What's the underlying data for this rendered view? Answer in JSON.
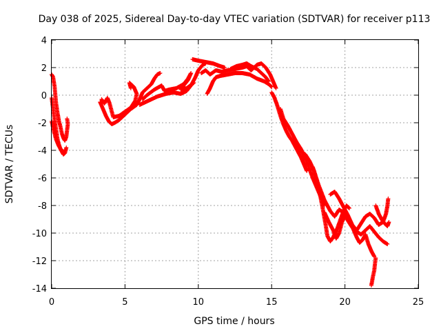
{
  "chart_data": {
    "type": "scatter",
    "title": "Day 038 of 2025, Sidereal Day-to-day VTEC variation (SDTVAR) for receiver p113",
    "xlabel": "GPS time / hours",
    "ylabel": "SDTVAR / TECUs",
    "xlim": [
      0,
      25
    ],
    "ylim": [
      -14,
      4
    ],
    "xticks": [
      0,
      5,
      10,
      15,
      20,
      25
    ],
    "yticks": [
      -14,
      -12,
      -10,
      -8,
      -6,
      -4,
      -2,
      0,
      2,
      4
    ],
    "xtick_labels": [
      "0",
      "5",
      "10",
      "15",
      "20",
      "25"
    ],
    "ytick_labels": [
      "-14",
      "-12",
      "-10",
      "-8",
      "-6",
      "-4",
      "-2",
      "0",
      "2",
      "4"
    ],
    "grid": true,
    "marker": "+",
    "series": [
      {
        "name": "SDTVAR",
        "color": "#ff0000",
        "segments": [
          [
            [
              0.0,
              1.5
            ],
            [
              0.1,
              1.3
            ],
            [
              0.2,
              0.6
            ],
            [
              0.3,
              -0.6
            ],
            [
              0.4,
              -1.3
            ],
            [
              0.5,
              -1.9
            ],
            [
              0.6,
              -2.3
            ],
            [
              0.7,
              -2.8
            ],
            [
              0.8,
              -3.1
            ],
            [
              0.9,
              -3.3
            ],
            [
              1.0,
              -3.0
            ],
            [
              1.1,
              -2.1
            ],
            [
              1.05,
              -1.7
            ]
          ],
          [
            [
              0.0,
              -0.2
            ],
            [
              0.1,
              -1.0
            ],
            [
              0.2,
              -1.8
            ],
            [
              0.3,
              -2.5
            ],
            [
              0.4,
              -3.2
            ],
            [
              0.5,
              -3.6
            ],
            [
              0.6,
              -3.9
            ],
            [
              0.7,
              -4.1
            ],
            [
              0.8,
              -4.3
            ],
            [
              0.9,
              -4.2
            ],
            [
              1.0,
              -3.8
            ]
          ],
          [
            [
              0.0,
              -1.9
            ],
            [
              0.15,
              -2.6
            ],
            [
              0.3,
              -3.2
            ],
            [
              0.45,
              -3.6
            ],
            [
              0.6,
              -3.9
            ],
            [
              0.8,
              -4.1
            ]
          ],
          [
            [
              3.3,
              -0.5
            ],
            [
              3.5,
              -1.0
            ],
            [
              3.7,
              -1.5
            ],
            [
              3.9,
              -1.9
            ],
            [
              4.1,
              -2.1
            ],
            [
              4.3,
              -2.0
            ],
            [
              4.6,
              -1.8
            ],
            [
              5.0,
              -1.4
            ],
            [
              5.4,
              -1.0
            ],
            [
              5.8,
              -0.7
            ],
            [
              6.0,
              -0.3
            ],
            [
              6.2,
              0.2
            ],
            [
              6.5,
              0.5
            ],
            [
              6.8,
              0.8
            ],
            [
              7.0,
              1.2
            ],
            [
              7.2,
              1.5
            ],
            [
              7.4,
              1.6
            ]
          ],
          [
            [
              3.4,
              -0.3
            ],
            [
              3.6,
              -0.6
            ],
            [
              3.8,
              -0.2
            ],
            [
              3.95,
              -0.6
            ],
            [
              4.2,
              -1.6
            ],
            [
              4.6,
              -1.5
            ],
            [
              5.0,
              -1.2
            ],
            [
              5.4,
              -0.9
            ],
            [
              5.7,
              -0.4
            ],
            [
              5.8,
              0.1
            ],
            [
              5.6,
              0.6
            ],
            [
              5.3,
              0.9
            ],
            [
              5.4,
              0.5
            ]
          ],
          [
            [
              6.2,
              -0.3
            ],
            [
              6.5,
              0.0
            ],
            [
              7.0,
              0.4
            ],
            [
              7.5,
              0.7
            ],
            [
              7.7,
              0.3
            ],
            [
              8.0,
              0.4
            ],
            [
              8.5,
              0.5
            ],
            [
              9.0,
              0.8
            ],
            [
              9.3,
              1.2
            ],
            [
              9.5,
              1.6
            ],
            [
              9.3,
              1.1
            ],
            [
              9.0,
              0.7
            ],
            [
              8.8,
              0.4
            ],
            [
              9.2,
              0.5
            ],
            [
              9.7,
              0.9
            ]
          ],
          [
            [
              6.0,
              -0.7
            ],
            [
              6.6,
              -0.4
            ],
            [
              7.2,
              -0.1
            ],
            [
              7.8,
              0.1
            ],
            [
              8.3,
              0.2
            ],
            [
              8.8,
              0.1
            ],
            [
              9.2,
              0.3
            ],
            [
              9.5,
              0.7
            ],
            [
              9.8,
              1.3
            ],
            [
              10.0,
              1.8
            ],
            [
              10.3,
              2.2
            ],
            [
              10.5,
              2.3
            ]
          ],
          [
            [
              9.6,
              2.6
            ],
            [
              10.0,
              2.5
            ],
            [
              10.5,
              2.4
            ],
            [
              11.0,
              2.3
            ],
            [
              11.5,
              2.1
            ],
            [
              11.8,
              2.0
            ]
          ],
          [
            [
              10.6,
              0.1
            ],
            [
              10.8,
              0.5
            ],
            [
              11.0,
              1.0
            ],
            [
              11.2,
              1.3
            ],
            [
              11.5,
              1.4
            ],
            [
              12.0,
              1.5
            ],
            [
              12.5,
              1.6
            ],
            [
              13.0,
              1.6
            ],
            [
              13.5,
              1.5
            ],
            [
              14.0,
              1.2
            ],
            [
              14.5,
              1.0
            ],
            [
              14.8,
              0.8
            ],
            [
              15.0,
              0.6
            ]
          ],
          [
            [
              10.2,
              1.6
            ],
            [
              10.5,
              1.8
            ],
            [
              10.8,
              1.5
            ],
            [
              11.2,
              1.8
            ],
            [
              11.6,
              1.7
            ],
            [
              12.0,
              1.8
            ],
            [
              12.5,
              1.9
            ],
            [
              13.0,
              2.0
            ],
            [
              13.3,
              2.1
            ],
            [
              13.6,
              1.8
            ],
            [
              14.0,
              2.2
            ],
            [
              14.3,
              2.3
            ],
            [
              14.6,
              2.0
            ],
            [
              14.9,
              1.5
            ],
            [
              15.1,
              1.0
            ],
            [
              15.3,
              0.5
            ]
          ],
          [
            [
              12.2,
              1.9
            ],
            [
              12.6,
              2.1
            ],
            [
              13.0,
              2.2
            ],
            [
              13.3,
              2.3
            ],
            [
              13.6,
              2.1
            ],
            [
              14.0,
              1.9
            ],
            [
              14.3,
              1.6
            ],
            [
              14.6,
              1.3
            ],
            [
              14.8,
              1.0
            ]
          ],
          [
            [
              15.0,
              0.2
            ],
            [
              15.2,
              -0.2
            ],
            [
              15.4,
              -0.8
            ],
            [
              15.6,
              -1.5
            ],
            [
              15.8,
              -2.1
            ],
            [
              16.0,
              -2.6
            ],
            [
              16.2,
              -3.0
            ],
            [
              16.4,
              -3.3
            ],
            [
              16.6,
              -3.7
            ],
            [
              16.8,
              -4.1
            ],
            [
              17.0,
              -4.5
            ],
            [
              17.2,
              -5.0
            ],
            [
              17.4,
              -5.5
            ]
          ],
          [
            [
              15.6,
              -1.0
            ],
            [
              15.8,
              -1.7
            ],
            [
              16.1,
              -2.2
            ],
            [
              16.4,
              -2.8
            ],
            [
              16.7,
              -3.4
            ],
            [
              17.0,
              -3.9
            ],
            [
              17.3,
              -4.6
            ],
            [
              17.6,
              -5.4
            ],
            [
              17.8,
              -6.0
            ],
            [
              18.0,
              -6.5
            ],
            [
              18.2,
              -7.0
            ],
            [
              18.4,
              -7.5
            ],
            [
              18.6,
              -8.0
            ]
          ],
          [
            [
              16.5,
              -3.5
            ],
            [
              16.9,
              -4.0
            ],
            [
              17.3,
              -4.3
            ],
            [
              17.6,
              -4.8
            ],
            [
              17.9,
              -5.5
            ],
            [
              18.1,
              -6.3
            ],
            [
              18.3,
              -7.2
            ],
            [
              18.5,
              -8.3
            ],
            [
              18.7,
              -9.5
            ],
            [
              18.8,
              -10.2
            ],
            [
              19.0,
              -10.6
            ],
            [
              19.2,
              -10.3
            ],
            [
              19.5,
              -9.6
            ],
            [
              19.7,
              -9.0
            ],
            [
              19.9,
              -8.4
            ],
            [
              20.1,
              -8.0
            ],
            [
              20.3,
              -8.2
            ]
          ],
          [
            [
              18.6,
              -8.5
            ],
            [
              18.9,
              -9.2
            ],
            [
              19.2,
              -9.8
            ],
            [
              19.4,
              -10.4
            ],
            [
              19.6,
              -10.0
            ],
            [
              19.8,
              -9.2
            ],
            [
              20.0,
              -8.7
            ],
            [
              20.2,
              -8.9
            ],
            [
              20.4,
              -9.3
            ],
            [
              20.6,
              -9.8
            ],
            [
              20.8,
              -10.3
            ],
            [
              21.0,
              -10.7
            ],
            [
              21.2,
              -10.5
            ],
            [
              21.4,
              -10.1
            ],
            [
              21.6,
              -10.8
            ],
            [
              21.8,
              -11.3
            ],
            [
              22.0,
              -11.7
            ]
          ],
          [
            [
              19.0,
              -7.2
            ],
            [
              19.3,
              -7.0
            ],
            [
              19.6,
              -7.5
            ],
            [
              19.9,
              -8.1
            ],
            [
              20.2,
              -8.7
            ],
            [
              20.5,
              -9.4
            ],
            [
              20.8,
              -9.8
            ],
            [
              21.1,
              -9.3
            ],
            [
              21.4,
              -8.8
            ],
            [
              21.7,
              -8.6
            ],
            [
              22.0,
              -8.9
            ],
            [
              22.3,
              -9.4
            ],
            [
              22.6,
              -9.2
            ],
            [
              22.8,
              -8.6
            ],
            [
              22.9,
              -8.0
            ],
            [
              22.95,
              -7.5
            ]
          ],
          [
            [
              17.8,
              -5.2
            ],
            [
              18.2,
              -6.5
            ],
            [
              18.6,
              -7.6
            ],
            [
              19.0,
              -8.4
            ],
            [
              19.3,
              -8.8
            ],
            [
              19.6,
              -8.3
            ],
            [
              19.9,
              -8.5
            ],
            [
              20.2,
              -9.1
            ],
            [
              20.5,
              -9.6
            ],
            [
              20.8,
              -9.9
            ],
            [
              21.1,
              -10.1
            ],
            [
              21.4,
              -9.8
            ],
            [
              21.7,
              -9.5
            ],
            [
              22.0,
              -9.9
            ],
            [
              22.3,
              -10.3
            ],
            [
              22.6,
              -10.6
            ],
            [
              22.9,
              -10.8
            ]
          ],
          [
            [
              21.8,
              -13.8
            ],
            [
              21.9,
              -13.2
            ],
            [
              22.0,
              -12.7
            ],
            [
              22.05,
              -12.2
            ],
            [
              22.1,
              -11.8
            ]
          ],
          [
            [
              22.1,
              -8.0
            ],
            [
              22.3,
              -8.6
            ],
            [
              22.5,
              -9.0
            ],
            [
              22.7,
              -9.3
            ],
            [
              22.9,
              -9.5
            ],
            [
              23.0,
              -9.2
            ]
          ]
        ]
      }
    ]
  }
}
